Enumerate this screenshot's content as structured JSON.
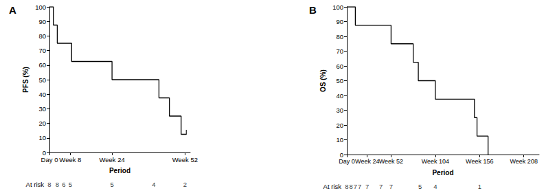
{
  "chart_data": [
    {
      "type": "step",
      "title": "A",
      "x_label": "Period",
      "y_label": "PFS (%)",
      "color": "#000000",
      "grid": false,
      "x": [
        0,
        1.5,
        3,
        8.5,
        24,
        42,
        46,
        50.5,
        52.5
      ],
      "values": [
        100,
        87.5,
        75,
        62.5,
        50,
        37.5,
        25,
        12.5,
        12.5
      ],
      "censored": {
        "x": [
          52.5
        ],
        "values": [
          12.5
        ]
      },
      "xlim": [
        0,
        54
      ],
      "xticks": [
        {
          "value": 0,
          "label": "Day 0"
        },
        {
          "value": 8,
          "label": "Week 8"
        },
        {
          "value": 24,
          "label": "Week 24"
        },
        {
          "value": 52,
          "label": "Week 52"
        }
      ],
      "ylim": [
        0,
        100
      ],
      "yticks": [
        0,
        10,
        20,
        30,
        40,
        50,
        60,
        70,
        80,
        90,
        100
      ],
      "at_risk": {
        "label": "At risk",
        "x": [
          0,
          3,
          5.5,
          8,
          24,
          40,
          52
        ],
        "values": [
          8,
          8,
          6,
          5,
          5,
          4,
          2
        ]
      }
    },
    {
      "type": "step",
      "title": "B",
      "x_label": "Period",
      "y_label": "OS (%)",
      "color": "#000000",
      "grid": false,
      "x": [
        0,
        10,
        52,
        78,
        84,
        104,
        150,
        153,
        166
      ],
      "values": [
        100,
        87.5,
        75,
        62.5,
        50,
        37.5,
        25,
        12.5,
        0
      ],
      "xlim": [
        0,
        226
      ],
      "xticks": [
        {
          "value": 0,
          "label": "Day 0"
        },
        {
          "value": 24,
          "label": "Week 24"
        },
        {
          "value": 52,
          "label": "Week 52"
        },
        {
          "value": 104,
          "label": "Week 104"
        },
        {
          "value": 156,
          "label": "Week 156"
        },
        {
          "value": 208,
          "label": "Week 208"
        }
      ],
      "ylim": [
        0,
        100
      ],
      "yticks": [
        0,
        10,
        20,
        30,
        40,
        50,
        60,
        70,
        80,
        90,
        100
      ],
      "at_risk": {
        "label": "At risk",
        "x": [
          0,
          5,
          10,
          15,
          24,
          40,
          52,
          86,
          104,
          156
        ],
        "values": [
          8,
          8,
          7,
          7,
          7,
          7,
          7,
          5,
          4,
          1
        ]
      }
    }
  ]
}
